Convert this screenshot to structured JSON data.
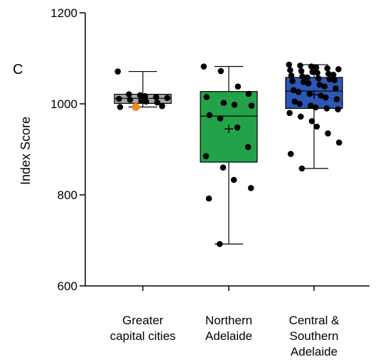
{
  "chart_data": {
    "type": "box",
    "panel_label": "C",
    "ylabel": "Index Score",
    "ylim": [
      600,
      1200
    ],
    "yticks": [
      600,
      800,
      1000,
      1200
    ],
    "categories": [
      {
        "lines": [
          "Greater",
          "capital cities"
        ]
      },
      {
        "lines": [
          "Northern",
          "Adelaide"
        ]
      },
      {
        "lines": [
          "Central &",
          "Southern",
          "Adelaide"
        ]
      }
    ],
    "boxes": [
      {
        "color": "#a6a6a6",
        "min": 993,
        "q1": 1001,
        "median": 1012,
        "q3": 1021,
        "max": 1071,
        "mean": 1014,
        "mean_marker": "square",
        "points": [
          1071,
          1021,
          1019,
          1017,
          1015,
          1013,
          1011,
          1009,
          1007,
          1005,
          1003,
          995,
          993
        ],
        "highlight": {
          "value": 993,
          "color": "#f28a1e"
        }
      },
      {
        "color": "#22a34a",
        "min": 692,
        "q1": 872,
        "median": 973,
        "q3": 1027,
        "max": 1082,
        "mean": 945,
        "mean_marker": "plus",
        "points": [
          1082,
          1072,
          1038,
          1022,
          1015,
          1002,
          998,
          996,
          975,
          968,
          948,
          905,
          885,
          860,
          833,
          815,
          792,
          692
        ]
      },
      {
        "color": "#2e56b4",
        "min": 858,
        "q1": 990,
        "median": 1028,
        "q3": 1058,
        "max": 1086,
        "mean": 1020,
        "mean_marker": "plus",
        "points": [
          1086,
          1084,
          1082,
          1080,
          1078,
          1076,
          1074,
          1072,
          1070,
          1068,
          1066,
          1064,
          1062,
          1060,
          1058,
          1056,
          1054,
          1052,
          1050,
          1048,
          1045,
          1042,
          1038,
          1034,
          1030,
          1026,
          1022,
          1018,
          1014,
          1010,
          1005,
          1000,
          996,
          992,
          990,
          988,
          980,
          972,
          962,
          950,
          935,
          915,
          890,
          858
        ]
      }
    ]
  }
}
